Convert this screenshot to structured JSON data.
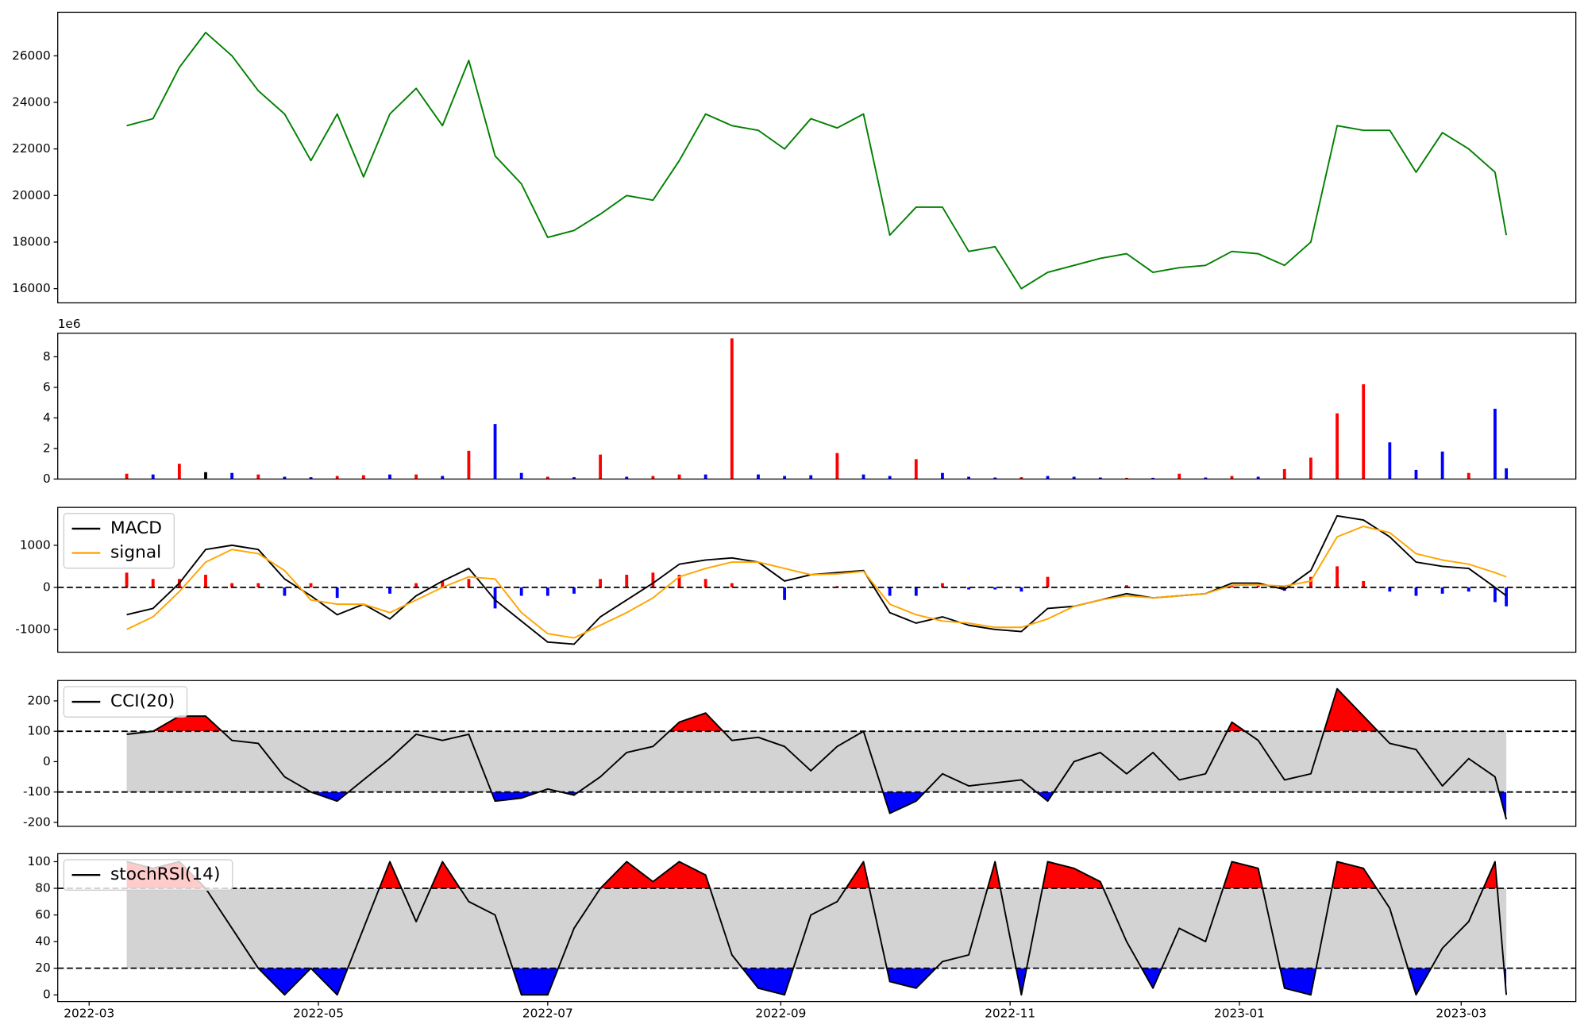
{
  "chart_data": [
    {
      "type": "line",
      "x": [
        10,
        17,
        24,
        31,
        38,
        45,
        52,
        59,
        66,
        73,
        80,
        87,
        94,
        101,
        108,
        115,
        122,
        129,
        136,
        143,
        150,
        157,
        164,
        171,
        178,
        185,
        192,
        199,
        206,
        213,
        220,
        227,
        234,
        241,
        248,
        255,
        262,
        269,
        276,
        283,
        290,
        297,
        304,
        311,
        318,
        325,
        332,
        339,
        346,
        353,
        360,
        367,
        374,
        377
      ],
      "series": [
        {
          "color": "green",
          "values": [
            23000,
            23300,
            25500,
            27000,
            26000,
            24500,
            23500,
            21500,
            23500,
            20800,
            23500,
            24600,
            23000,
            25800,
            21700,
            20500,
            18200,
            18500,
            19200,
            20000,
            19800,
            21500,
            23500,
            23000,
            22800,
            22000,
            23300,
            22900,
            23500,
            18300,
            19500,
            19500,
            17600,
            17800,
            16000,
            16700,
            17000,
            17300,
            17500,
            16700,
            16900,
            17000,
            17600,
            17500,
            17000,
            18000,
            23000,
            22800,
            22800,
            21000,
            22700,
            22000,
            21000,
            18300
          ]
        }
      ],
      "xlim": [
        -8.35,
        395.5
      ],
      "ylim": [
        15390,
        27870
      ],
      "yticks": [
        16000,
        18000,
        20000,
        22000,
        24000,
        26000
      ]
    },
    {
      "type": "bar",
      "x": [
        10,
        17,
        24,
        31,
        38,
        45,
        52,
        59,
        66,
        73,
        80,
        87,
        94,
        101,
        108,
        115,
        122,
        129,
        136,
        143,
        150,
        157,
        164,
        171,
        178,
        185,
        192,
        199,
        206,
        213,
        220,
        227,
        234,
        241,
        248,
        255,
        262,
        269,
        276,
        283,
        290,
        297,
        304,
        311,
        318,
        325,
        332,
        339,
        346,
        353,
        360,
        367,
        374,
        377
      ],
      "values": [
        350000,
        300000,
        1000000,
        450000,
        400000,
        300000,
        150000,
        120000,
        200000,
        250000,
        300000,
        300000,
        200000,
        1850000,
        3600000,
        400000,
        150000,
        120000,
        1600000,
        150000,
        200000,
        300000,
        300000,
        9200000,
        300000,
        200000,
        250000,
        1700000,
        300000,
        200000,
        1300000,
        400000,
        150000,
        100000,
        120000,
        200000,
        150000,
        100000,
        80000,
        80000,
        350000,
        100000,
        200000,
        150000,
        650000,
        1400000,
        4300000,
        6200000,
        2400000,
        600000,
        1800000,
        400000,
        4600000,
        700000
      ],
      "bar_colors": [
        "red",
        "blue",
        "red",
        "black",
        "blue",
        "red",
        "blue",
        "blue",
        "red",
        "red",
        "blue",
        "red",
        "blue",
        "red",
        "blue",
        "blue",
        "red",
        "blue",
        "red",
        "blue",
        "red",
        "red",
        "blue",
        "red",
        "blue",
        "blue",
        "blue",
        "red",
        "blue",
        "blue",
        "red",
        "blue",
        "blue",
        "blue",
        "red",
        "blue",
        "blue",
        "blue",
        "red",
        "blue",
        "red",
        "blue",
        "red",
        "blue",
        "red",
        "red",
        "red",
        "red",
        "blue",
        "blue",
        "blue",
        "red",
        "blue",
        "blue"
      ],
      "offset_label": "1e6",
      "xlim": [
        -8.35,
        395.5
      ],
      "ylim": [
        0,
        9540000
      ],
      "yticks": [
        {
          "value": 0,
          "label": "0"
        },
        {
          "value": 2000000,
          "label": "2"
        },
        {
          "value": 4000000,
          "label": "4"
        },
        {
          "value": 6000000,
          "label": "6"
        },
        {
          "value": 8000000,
          "label": "8"
        }
      ]
    },
    {
      "type": "macd",
      "x": [
        10,
        17,
        24,
        31,
        38,
        45,
        52,
        59,
        66,
        73,
        80,
        87,
        94,
        101,
        108,
        115,
        122,
        129,
        136,
        143,
        150,
        157,
        164,
        171,
        178,
        185,
        192,
        199,
        206,
        213,
        220,
        227,
        234,
        241,
        248,
        255,
        262,
        269,
        276,
        283,
        290,
        297,
        304,
        311,
        318,
        325,
        332,
        339,
        346,
        353,
        360,
        367,
        374,
        377
      ],
      "series": [
        {
          "name": "MACD",
          "color": "black",
          "values": [
            -650,
            -500,
            100,
            900,
            1000,
            900,
            200,
            -200,
            -650,
            -400,
            -750,
            -200,
            150,
            450,
            -300,
            -800,
            -1300,
            -1350,
            -700,
            -300,
            100,
            550,
            650,
            700,
            600,
            150,
            300,
            350,
            400,
            -600,
            -850,
            -700,
            -900,
            -1000,
            -1050,
            -500,
            -450,
            -300,
            -150,
            -250,
            -200,
            -150,
            100,
            100,
            -50,
            400,
            1700,
            1600,
            1200,
            600,
            500,
            450,
            0,
            -200
          ]
        },
        {
          "name": "signal",
          "color": "orange",
          "values": [
            -1000,
            -700,
            -100,
            600,
            900,
            800,
            400,
            -300,
            -400,
            -400,
            -600,
            -300,
            0,
            250,
            200,
            -600,
            -1100,
            -1200,
            -900,
            -600,
            -250,
            250,
            450,
            600,
            600,
            450,
            300,
            320,
            380,
            -400,
            -650,
            -800,
            -850,
            -950,
            -950,
            -750,
            -450,
            -300,
            -200,
            -250,
            -200,
            -150,
            50,
            60,
            30,
            150,
            1200,
            1450,
            1300,
            800,
            650,
            550,
            350,
            250
          ]
        }
      ],
      "histogram": {
        "up_color": "red",
        "down_color": "blue",
        "values": [
          350,
          200,
          200,
          300,
          100,
          100,
          -200,
          100,
          -250,
          0,
          -150,
          100,
          150,
          200,
          -500,
          -200,
          -200,
          -150,
          200,
          300,
          350,
          300,
          200,
          100,
          0,
          -300,
          0,
          30,
          20,
          -200,
          -200,
          100,
          -50,
          -50,
          -100,
          250,
          0,
          0,
          50,
          0,
          0,
          0,
          50,
          40,
          -80,
          250,
          500,
          150,
          -100,
          -200,
          -150,
          -100,
          -350,
          -450
        ]
      },
      "hline": 0,
      "legend": true,
      "xlim": [
        -8.35,
        395.5
      ],
      "ylim": [
        -1540,
        1900
      ],
      "yticks": [
        -1000,
        0,
        1000
      ]
    },
    {
      "type": "oscillator",
      "x": [
        10,
        17,
        24,
        31,
        38,
        45,
        52,
        59,
        66,
        73,
        80,
        87,
        94,
        101,
        108,
        115,
        122,
        129,
        136,
        143,
        150,
        157,
        164,
        171,
        178,
        185,
        192,
        199,
        206,
        213,
        220,
        227,
        234,
        241,
        248,
        255,
        262,
        269,
        276,
        283,
        290,
        297,
        304,
        311,
        318,
        325,
        332,
        339,
        346,
        353,
        360,
        367,
        374,
        377
      ],
      "series": [
        {
          "name": "CCI(20)",
          "color": "black",
          "values": [
            90,
            100,
            150,
            150,
            70,
            60,
            -50,
            -100,
            -130,
            -60,
            10,
            90,
            70,
            90,
            -130,
            -120,
            -90,
            -110,
            -50,
            30,
            50,
            130,
            160,
            70,
            80,
            50,
            -30,
            50,
            100,
            -170,
            -130,
            -40,
            -80,
            -70,
            -60,
            -130,
            0,
            30,
            -40,
            30,
            -60,
            -40,
            130,
            70,
            -60,
            -40,
            240,
            150,
            60,
            40,
            -80,
            10,
            -50,
            -190
          ]
        }
      ],
      "bands": [
        -100,
        100
      ],
      "band_fill": "lightgray",
      "upper_fill": "red",
      "lower_fill": "blue",
      "legend": true,
      "xlim": [
        -8.35,
        395.5
      ],
      "ylim": [
        -213,
        267
      ],
      "yticks": [
        -200,
        -100,
        0,
        100,
        200
      ]
    },
    {
      "type": "oscillator",
      "x": [
        10,
        17,
        24,
        31,
        38,
        45,
        52,
        59,
        66,
        73,
        80,
        87,
        94,
        101,
        108,
        115,
        122,
        129,
        136,
        143,
        150,
        157,
        164,
        171,
        178,
        185,
        192,
        199,
        206,
        213,
        220,
        227,
        234,
        241,
        248,
        255,
        262,
        269,
        276,
        283,
        290,
        297,
        304,
        311,
        318,
        325,
        332,
        339,
        346,
        353,
        360,
        367,
        374,
        377
      ],
      "series": [
        {
          "name": "stochRSI(14)",
          "color": "black",
          "values": [
            100,
            95,
            100,
            80,
            50,
            20,
            0,
            20,
            0,
            50,
            100,
            55,
            100,
            70,
            60,
            0,
            0,
            50,
            80,
            100,
            85,
            100,
            90,
            30,
            5,
            0,
            60,
            70,
            100,
            10,
            5,
            25,
            30,
            100,
            0,
            100,
            95,
            85,
            40,
            5,
            50,
            40,
            100,
            95,
            5,
            0,
            100,
            95,
            65,
            0,
            35,
            55,
            100,
            0
          ]
        }
      ],
      "bands": [
        20,
        80
      ],
      "band_fill": "lightgray",
      "upper_fill": "red",
      "lower_fill": "blue",
      "legend": true,
      "xlim": [
        -8.35,
        395.5
      ],
      "ylim": [
        -5,
        106
      ],
      "yticks": [
        0,
        20,
        40,
        60,
        80,
        100
      ],
      "xticks": [
        {
          "value": 0,
          "label": "2022-03"
        },
        {
          "value": 61,
          "label": "2022-05"
        },
        {
          "value": 122,
          "label": "2022-07"
        },
        {
          "value": 184,
          "label": "2022-09"
        },
        {
          "value": 245,
          "label": "2022-11"
        },
        {
          "value": 306,
          "label": "2023-01"
        },
        {
          "value": 365,
          "label": "2023-03"
        }
      ]
    }
  ]
}
